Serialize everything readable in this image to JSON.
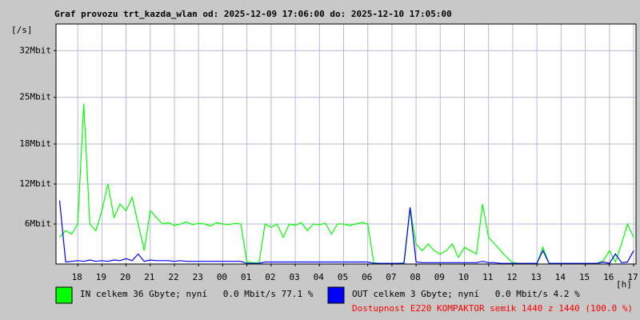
{
  "chart_data": {
    "type": "line",
    "title": "Graf provozu trt_kazda_wlan od: 2025-12-09 17:06:00 do: 2025-12-10 17:05:00",
    "y_label": "[/s]",
    "x_label": "[h]",
    "xlim": [
      0.1,
      24.1
    ],
    "ylim": [
      0,
      36
    ],
    "yticks": [
      {
        "value": 6,
        "label": "6Mbit"
      },
      {
        "value": 12,
        "label": "12Mbit"
      },
      {
        "value": 18,
        "label": "18Mbit"
      },
      {
        "value": 25,
        "label": "25Mbit"
      },
      {
        "value": 32,
        "label": "32Mbit"
      }
    ],
    "xticks": [
      {
        "value": 1,
        "label": "18"
      },
      {
        "value": 2,
        "label": "19"
      },
      {
        "value": 3,
        "label": "20"
      },
      {
        "value": 4,
        "label": "21"
      },
      {
        "value": 5,
        "label": "22"
      },
      {
        "value": 6,
        "label": "23"
      },
      {
        "value": 7,
        "label": "00"
      },
      {
        "value": 8,
        "label": "01"
      },
      {
        "value": 9,
        "label": "02"
      },
      {
        "value": 10,
        "label": "03"
      },
      {
        "value": 11,
        "label": "04"
      },
      {
        "value": 12,
        "label": "05"
      },
      {
        "value": 13,
        "label": "06"
      },
      {
        "value": 14,
        "label": "07"
      },
      {
        "value": 15,
        "label": "08"
      },
      {
        "value": 16,
        "label": "09"
      },
      {
        "value": 17,
        "label": "10"
      },
      {
        "value": 18,
        "label": "11"
      },
      {
        "value": 19,
        "label": "12"
      },
      {
        "value": 20,
        "label": "13"
      },
      {
        "value": 21,
        "label": "14"
      },
      {
        "value": 22,
        "label": "15"
      },
      {
        "value": 23,
        "label": "16"
      },
      {
        "value": 24,
        "label": "17"
      }
    ],
    "grid": true,
    "x": [
      0.25,
      0.5,
      0.75,
      1,
      1.25,
      1.5,
      1.75,
      2,
      2.25,
      2.5,
      2.75,
      3,
      3.25,
      3.5,
      3.75,
      4,
      4.25,
      4.5,
      4.75,
      5,
      5.25,
      5.5,
      5.75,
      6,
      6.25,
      6.5,
      6.75,
      7,
      7.25,
      7.5,
      7.75,
      8,
      8.25,
      8.5,
      8.75,
      9,
      9.25,
      9.5,
      9.75,
      10,
      10.25,
      10.5,
      10.75,
      11,
      11.25,
      11.5,
      11.75,
      12,
      12.25,
      12.5,
      12.75,
      13,
      13.25,
      13.5,
      13.75,
      14,
      14.25,
      14.5,
      14.75,
      15,
      15.25,
      15.5,
      15.75,
      16,
      16.25,
      16.5,
      16.75,
      17,
      17.25,
      17.5,
      17.75,
      18,
      18.25,
      18.5,
      18.75,
      19,
      19.25,
      19.5,
      19.75,
      20,
      20.25,
      20.5,
      20.75,
      21,
      21.25,
      21.5,
      21.75,
      22,
      22.25,
      22.5,
      22.75,
      23,
      23.25,
      23.5,
      23.75,
      24
    ],
    "series": [
      {
        "name": "IN celkem 36 Gbyte; nyní   0.0 Mbit/s 77.1 %",
        "color": "#00ff00",
        "values": [
          4,
          5,
          4.5,
          6,
          24,
          6,
          5,
          8,
          12,
          7,
          9,
          8,
          10,
          6,
          2,
          8,
          7,
          6,
          6.2,
          5.8,
          6,
          6.3,
          5.9,
          6.1,
          6,
          5.7,
          6.2,
          6,
          5.9,
          6.1,
          6,
          0.3,
          0.2,
          0.2,
          6,
          5.5,
          6,
          4,
          6,
          5.8,
          6.2,
          5,
          6,
          5.9,
          6.1,
          4.5,
          6,
          6,
          5.8,
          6,
          6.2,
          6,
          0.2,
          0.1,
          0.1,
          0.1,
          0.1,
          0.2,
          8.5,
          3,
          2,
          3,
          2,
          1.5,
          2,
          3,
          1,
          2.5,
          2,
          1.5,
          9,
          4,
          3,
          2,
          1,
          0.2,
          0.1,
          0.1,
          0.1,
          0.1,
          2.5,
          0.1,
          0.1,
          0.1,
          0.1,
          0.1,
          0.1,
          0.1,
          0.1,
          0.1,
          0.5,
          2,
          0.3,
          3,
          6,
          4
        ]
      },
      {
        "name": "OUT celkem 3 Gbyte; nyní   0.0 Mbit/s 4.2 %",
        "color": "#0000ff",
        "values": [
          9.5,
          0.3,
          0.4,
          0.5,
          0.4,
          0.6,
          0.4,
          0.5,
          0.4,
          0.6,
          0.5,
          0.8,
          0.5,
          1.5,
          0.4,
          0.6,
          0.5,
          0.5,
          0.5,
          0.4,
          0.5,
          0.4,
          0.4,
          0.4,
          0.4,
          0.4,
          0.4,
          0.4,
          0.4,
          0.4,
          0.4,
          0.1,
          0.1,
          0.1,
          0.3,
          0.3,
          0.3,
          0.3,
          0.3,
          0.3,
          0.3,
          0.3,
          0.3,
          0.3,
          0.3,
          0.3,
          0.3,
          0.3,
          0.3,
          0.3,
          0.3,
          0.3,
          0.1,
          0.1,
          0.1,
          0.1,
          0.1,
          0.1,
          8.5,
          0.3,
          0.2,
          0.2,
          0.2,
          0.2,
          0.2,
          0.2,
          0.2,
          0.2,
          0.2,
          0.2,
          0.4,
          0.2,
          0.2,
          0.1,
          0.1,
          0.1,
          0.1,
          0.1,
          0.1,
          0.1,
          2,
          0.1,
          0.1,
          0.1,
          0.1,
          0.1,
          0.1,
          0.1,
          0.1,
          0.1,
          0.3,
          0.1,
          1.5,
          0.2,
          0.3,
          2
        ]
      }
    ],
    "footer": "Dostupnost E220 KOMPAKTOR semik 1440 z 1440 (100.0 %)"
  }
}
